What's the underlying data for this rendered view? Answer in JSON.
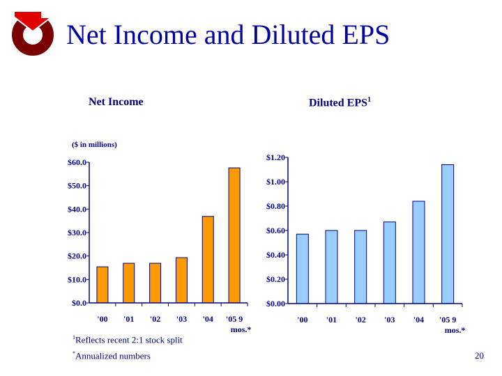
{
  "title": "Net Income and Diluted EPS",
  "footnotes": {
    "split_mark": "1",
    "split": "Reflects recent 2:1 stock split",
    "annualized_mark": "*",
    "annualized": "Annualized numbers"
  },
  "page_number": "20",
  "colors": {
    "text": "#000080",
    "title": "#0000a0",
    "income_bar": "#ff9900",
    "eps_bar": "#99ccff",
    "logo_red": "#e00000",
    "logo_ring": "#7a0000"
  },
  "chart_data": [
    {
      "type": "bar",
      "title": "Net Income",
      "ylabel": "($ in millions)",
      "categories": [
        "'00",
        "'01",
        "'02",
        "'03",
        "'04",
        "'05 9 mos.*"
      ],
      "category_lines": [
        [
          "'00"
        ],
        [
          "'01"
        ],
        [
          "'02"
        ],
        [
          "'03"
        ],
        [
          "'04"
        ],
        [
          "'05 9",
          "mos.*"
        ]
      ],
      "values": [
        15.4,
        16.9,
        16.9,
        19.3,
        36.9,
        57.6
      ],
      "ylim": [
        0,
        60
      ],
      "yticks": [
        0,
        10,
        20,
        30,
        40,
        50,
        60
      ],
      "ytick_labels": [
        "$0.0",
        "$10.0",
        "$20.0",
        "$30.0",
        "$40.0",
        "$50.0",
        "$60.0"
      ],
      "grid": false
    },
    {
      "type": "bar",
      "title": "Diluted EPS",
      "title_superscript": "1",
      "categories": [
        "'00",
        "'01",
        "'02",
        "'03",
        "'04",
        "'05 9 mos.*"
      ],
      "category_lines": [
        [
          "'00"
        ],
        [
          "'01"
        ],
        [
          "'02"
        ],
        [
          "'03"
        ],
        [
          "'04"
        ],
        [
          "'05 9",
          "mos.*"
        ]
      ],
      "values": [
        0.57,
        0.6,
        0.6,
        0.67,
        0.84,
        1.14
      ],
      "ylim": [
        0,
        1.2
      ],
      "yticks": [
        0,
        0.2,
        0.4,
        0.6,
        0.8,
        1.0,
        1.2
      ],
      "ytick_labels": [
        "$0.00",
        "$0.20",
        "$0.40",
        "$0.60",
        "$0.80",
        "$1.00",
        "$1.20"
      ],
      "grid": false
    }
  ]
}
